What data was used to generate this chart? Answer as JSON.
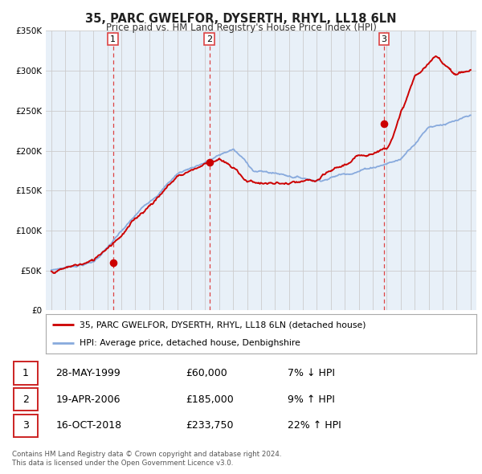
{
  "title": "35, PARC GWELFOR, DYSERTH, RHYL, LL18 6LN",
  "subtitle": "Price paid vs. HM Land Registry's House Price Index (HPI)",
  "legend_label_red": "35, PARC GWELFOR, DYSERTH, RHYL, LL18 6LN (detached house)",
  "legend_label_blue": "HPI: Average price, detached house, Denbighshire",
  "footer_line1": "Contains HM Land Registry data © Crown copyright and database right 2024.",
  "footer_line2": "This data is licensed under the Open Government Licence v3.0.",
  "transactions": [
    {
      "num": 1,
      "date": "28-MAY-1999",
      "price": "£60,000",
      "relation": "7% ↓ HPI"
    },
    {
      "num": 2,
      "date": "19-APR-2006",
      "price": "£185,000",
      "relation": "9% ↑ HPI"
    },
    {
      "num": 3,
      "date": "16-OCT-2018",
      "price": "£233,750",
      "relation": "22% ↑ HPI"
    }
  ],
  "transaction_dates": [
    1999.41,
    2006.3,
    2018.79
  ],
  "transaction_prices": [
    60000,
    185000,
    233750
  ],
  "ylim": [
    0,
    350000
  ],
  "yticks": [
    0,
    50000,
    100000,
    150000,
    200000,
    250000,
    300000,
    350000
  ],
  "ytick_labels": [
    "£0",
    "£50K",
    "£100K",
    "£150K",
    "£200K",
    "£250K",
    "£300K",
    "£350K"
  ],
  "xlim_start": 1994.6,
  "xlim_end": 2025.4,
  "red_color": "#cc0000",
  "blue_color": "#88aadd",
  "vline_color": "#dd4444",
  "grid_color": "#cccccc",
  "chart_bg": "#e8f0f8",
  "fig_bg": "#ffffff",
  "box_border": "#cc2222"
}
